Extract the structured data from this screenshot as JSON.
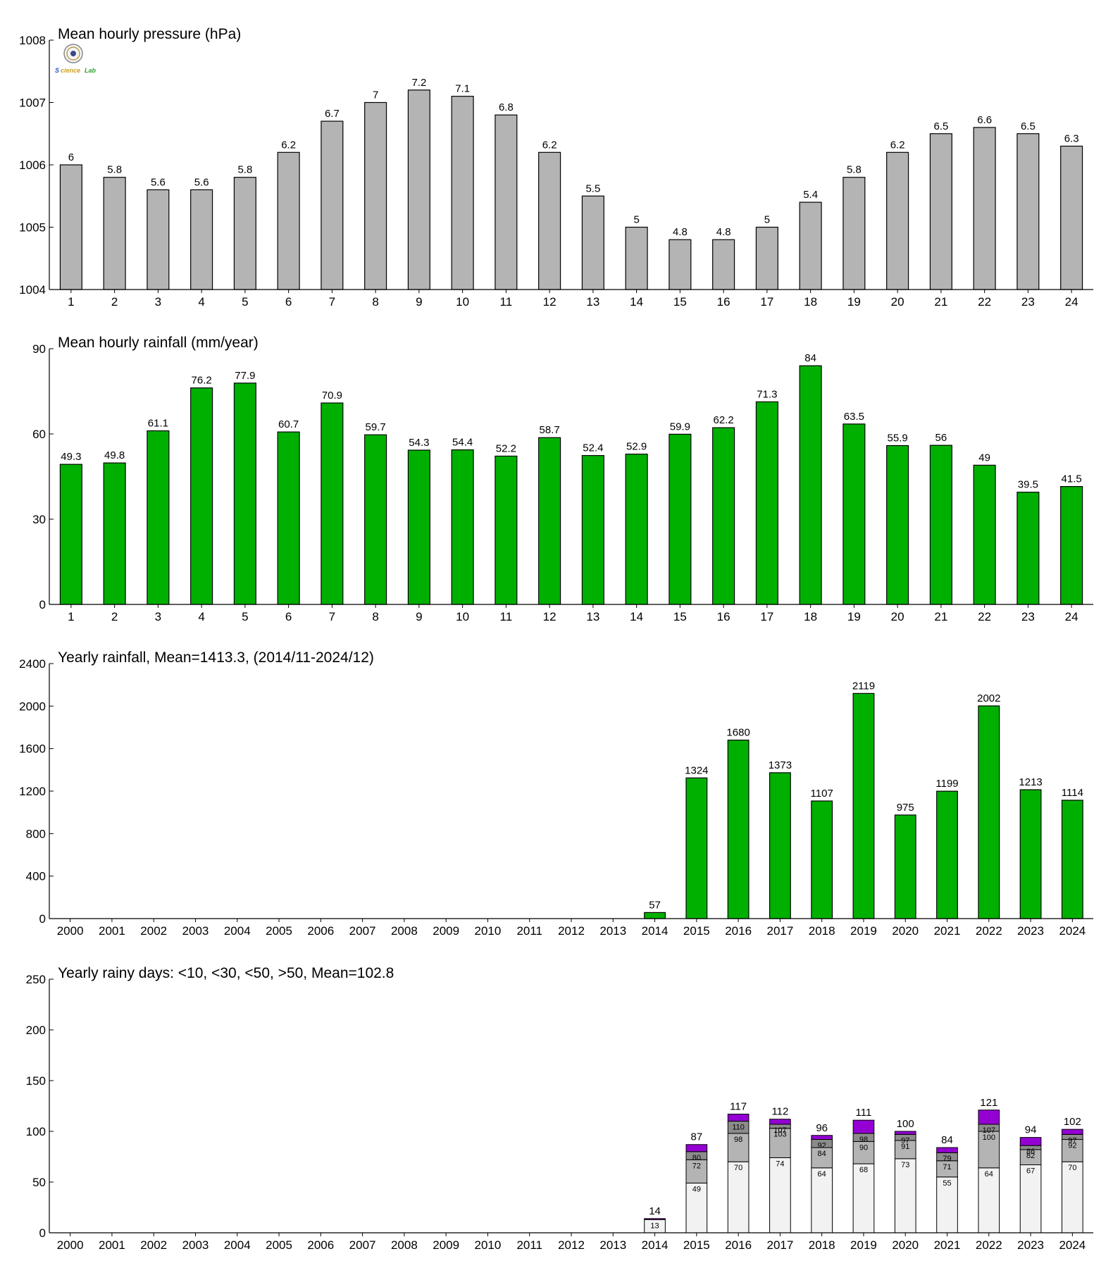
{
  "chart_data": [
    {
      "type": "bar",
      "title": "Mean hourly pressure (hPa)",
      "categories": [
        "1",
        "2",
        "3",
        "4",
        "5",
        "6",
        "7",
        "8",
        "9",
        "10",
        "11",
        "12",
        "13",
        "14",
        "15",
        "16",
        "17",
        "18",
        "19",
        "20",
        "21",
        "22",
        "23",
        "24"
      ],
      "values": [
        1006.0,
        1005.8,
        1005.6,
        1005.6,
        1005.8,
        1006.2,
        1006.7,
        1007.0,
        1007.2,
        1007.1,
        1006.8,
        1006.2,
        1005.5,
        1005.0,
        1004.8,
        1004.8,
        1005.0,
        1005.4,
        1005.8,
        1006.2,
        1006.5,
        1006.6,
        1006.5,
        1006.3
      ],
      "labels": [
        "6",
        "5.8",
        "5.6",
        "5.6",
        "5.8",
        "6.2",
        "6.7",
        "7",
        "7.2",
        "7.1",
        "6.8",
        "6.2",
        "5.5",
        "5",
        "4.8",
        "4.8",
        "5",
        "5.4",
        "5.8",
        "6.2",
        "6.5",
        "6.6",
        "6.5",
        "6.3"
      ],
      "ylim": [
        1004,
        1008
      ],
      "yticks": [
        "1004",
        "1005",
        "1006",
        "1007",
        "1008"
      ],
      "color": "#b4b4b4",
      "grid": false
    },
    {
      "type": "bar",
      "title": "Mean hourly rainfall (mm/year)",
      "categories": [
        "1",
        "2",
        "3",
        "4",
        "5",
        "6",
        "7",
        "8",
        "9",
        "10",
        "11",
        "12",
        "13",
        "14",
        "15",
        "16",
        "17",
        "18",
        "19",
        "20",
        "21",
        "22",
        "23",
        "24"
      ],
      "values": [
        49.3,
        49.8,
        61.1,
        76.2,
        77.9,
        60.7,
        70.9,
        59.7,
        54.3,
        54.4,
        52.2,
        58.7,
        52.4,
        52.9,
        59.9,
        62.2,
        71.3,
        84,
        63.5,
        55.9,
        56,
        49,
        39.5,
        41.5
      ],
      "labels": [
        "49.3",
        "49.8",
        "61.1",
        "76.2",
        "77.9",
        "60.7",
        "70.9",
        "59.7",
        "54.3",
        "54.4",
        "52.2",
        "58.7",
        "52.4",
        "52.9",
        "59.9",
        "62.2",
        "71.3",
        "84",
        "63.5",
        "55.9",
        "56",
        "49",
        "39.5",
        "41.5"
      ],
      "ylim": [
        0,
        90
      ],
      "yticks": [
        "0",
        "30",
        "60",
        "90"
      ],
      "color": "#00b000",
      "grid": false
    },
    {
      "type": "bar",
      "title": "Yearly rainfall, Mean=1413.3, (2014/11-2024/12)",
      "categories": [
        "2000",
        "2001",
        "2002",
        "2003",
        "2004",
        "2005",
        "2006",
        "2007",
        "2008",
        "2009",
        "2010",
        "2011",
        "2012",
        "2013",
        "2014",
        "2015",
        "2016",
        "2017",
        "2018",
        "2019",
        "2020",
        "2021",
        "2022",
        "2023",
        "2024"
      ],
      "values": [
        null,
        null,
        null,
        null,
        null,
        null,
        null,
        null,
        null,
        null,
        null,
        null,
        null,
        null,
        57,
        1324,
        1680,
        1373,
        1107,
        2119,
        975,
        1199,
        2002,
        1213,
        1114
      ],
      "labels": [
        "",
        "",
        "",
        "",
        "",
        "",
        "",
        "",
        "",
        "",
        "",
        "",
        "",
        "",
        "57",
        "1324",
        "1680",
        "1373",
        "1107",
        "2119",
        "975",
        "1199",
        "2002",
        "1213",
        "1114"
      ],
      "ylim": [
        0,
        2400
      ],
      "yticks": [
        "0",
        "400",
        "800",
        "1200",
        "1600",
        "2000",
        "2400"
      ],
      "color": "#00b000",
      "grid": false
    },
    {
      "type": "bar",
      "stacked": true,
      "title": "Yearly rainy days: <10, <30, <50, >50, Mean=102.8",
      "categories": [
        "2000",
        "2001",
        "2002",
        "2003",
        "2004",
        "2005",
        "2006",
        "2007",
        "2008",
        "2009",
        "2010",
        "2011",
        "2012",
        "2013",
        "2014",
        "2015",
        "2016",
        "2017",
        "2018",
        "2019",
        "2020",
        "2021",
        "2022",
        "2023",
        "2024"
      ],
      "cumulative_values": {
        "lt10": [
          null,
          null,
          null,
          null,
          null,
          null,
          null,
          null,
          null,
          null,
          null,
          null,
          null,
          null,
          13,
          49,
          70,
          74,
          64,
          68,
          73,
          55,
          64,
          67,
          70
        ],
        "lt30": [
          null,
          null,
          null,
          null,
          null,
          null,
          null,
          null,
          null,
          null,
          null,
          null,
          null,
          null,
          null,
          72,
          98,
          103,
          84,
          90,
          91,
          71,
          100,
          82,
          92
        ],
        "lt50": [
          null,
          null,
          null,
          null,
          null,
          null,
          null,
          null,
          null,
          null,
          null,
          null,
          null,
          null,
          null,
          80,
          110,
          107,
          92,
          98,
          97,
          79,
          107,
          86,
          97
        ],
        "total": [
          null,
          null,
          null,
          null,
          null,
          null,
          null,
          null,
          null,
          null,
          null,
          null,
          null,
          null,
          14,
          87,
          117,
          112,
          96,
          111,
          100,
          84,
          121,
          94,
          102
        ]
      },
      "segment_colors": [
        "#f2f2f2",
        "#b4b4b4",
        "#8c8c8c",
        "#9400d3"
      ],
      "ylim": [
        0,
        250
      ],
      "yticks": [
        "0",
        "50",
        "100",
        "150",
        "200",
        "250"
      ],
      "grid": false
    }
  ]
}
